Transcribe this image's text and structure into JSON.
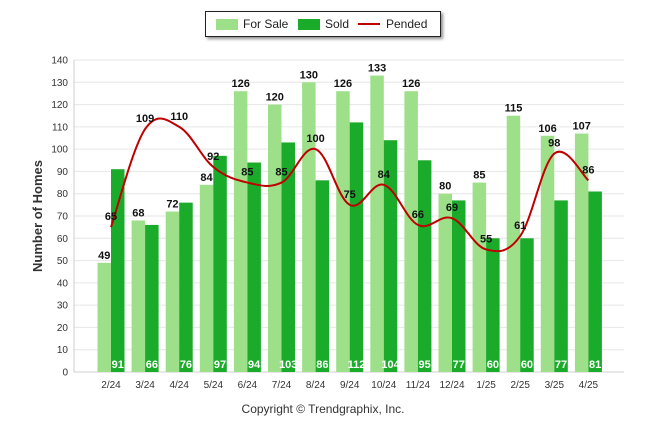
{
  "chart_data": {
    "type": "bar",
    "categories": [
      "2/24",
      "3/24",
      "4/24",
      "5/24",
      "6/24",
      "7/24",
      "8/24",
      "9/24",
      "10/24",
      "11/24",
      "12/24",
      "1/25",
      "2/25",
      "3/25",
      "4/25"
    ],
    "series": [
      {
        "name": "For Sale",
        "kind": "bar",
        "color": "#9ee08a",
        "values": [
          49,
          68,
          72,
          84,
          126,
          120,
          130,
          126,
          133,
          126,
          80,
          85,
          115,
          106,
          107
        ]
      },
      {
        "name": "Sold",
        "kind": "bar",
        "color": "#1aab2a",
        "values": [
          91,
          66,
          76,
          97,
          94,
          103,
          86,
          112,
          104,
          95,
          77,
          60,
          60,
          77,
          81
        ]
      },
      {
        "name": "Pended",
        "kind": "line",
        "color": "#c00000",
        "values": [
          65,
          109,
          110,
          92,
          85,
          85,
          100,
          75,
          84,
          66,
          69,
          55,
          61,
          98,
          86
        ]
      }
    ],
    "ylabel": "Number of Homes",
    "xlabel": "",
    "ylim": [
      0,
      140
    ],
    "yticks": [
      0,
      10,
      20,
      30,
      40,
      50,
      60,
      70,
      80,
      90,
      100,
      110,
      120,
      130,
      140
    ],
    "legend_position": "top-center",
    "grid": true
  },
  "footer": {
    "copyright": "Copyright © Trendgraphix, Inc."
  }
}
